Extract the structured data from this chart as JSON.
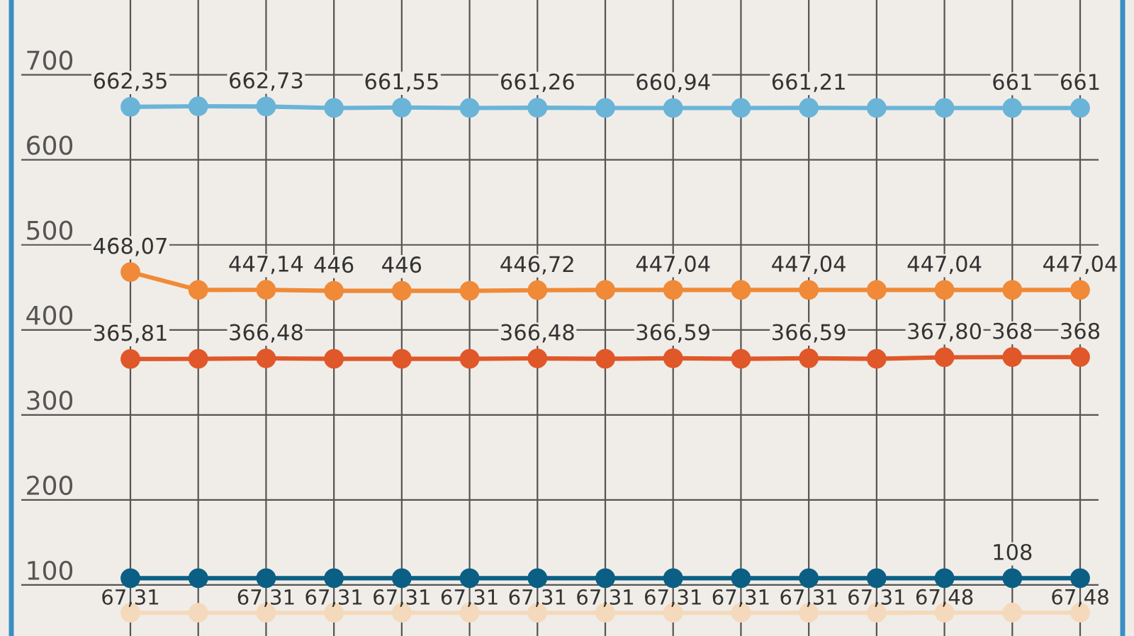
{
  "chart_data": {
    "type": "line",
    "categories": [
      null,
      null,
      null,
      null,
      null,
      null,
      null,
      null,
      null,
      null,
      null,
      null,
      null,
      null,
      null
    ],
    "series": [
      {
        "color": "#6ab4d8",
        "values": [
          662.35,
          663,
          662.73,
          661,
          661.55,
          661,
          661.26,
          661,
          660.94,
          661,
          661.21,
          661,
          661,
          661,
          661
        ],
        "value_labels": [
          "662,35",
          null,
          "662,73",
          null,
          "661,55",
          null,
          "661,26",
          null,
          "660,94",
          null,
          "661,21",
          null,
          null,
          "661",
          "661"
        ]
      },
      {
        "color": "#f08a38",
        "values": [
          468.07,
          447,
          447.14,
          446,
          446,
          446,
          446.72,
          447,
          447.04,
          447,
          447.04,
          447,
          447.04,
          447,
          447.04
        ],
        "value_labels": [
          "468,07",
          null,
          "447,14",
          "446",
          "446",
          null,
          "446,72",
          null,
          "447,04",
          null,
          "447,04",
          null,
          "447,04",
          null,
          "447,04"
        ]
      },
      {
        "color": "#e0572a",
        "values": [
          365.81,
          366,
          366.48,
          366,
          366,
          366,
          366.48,
          366,
          366.59,
          366,
          366.59,
          366,
          367.8,
          368,
          368
        ],
        "value_labels": [
          "365,81",
          null,
          "366,48",
          null,
          null,
          null,
          "366,48",
          null,
          "366,59",
          null,
          "366,59",
          null,
          "367,80",
          "368",
          "368"
        ]
      },
      {
        "color": "#0b5f84",
        "values": [
          108,
          108,
          108,
          108,
          108,
          108,
          108,
          108,
          108,
          108,
          108,
          108,
          108,
          108,
          108
        ],
        "value_labels": [
          null,
          null,
          null,
          null,
          null,
          null,
          null,
          null,
          null,
          null,
          null,
          null,
          null,
          "108",
          null
        ]
      },
      {
        "color": "#f5d9bc",
        "values": [
          67.31,
          67.31,
          67.31,
          67.31,
          67.31,
          67.31,
          67.31,
          67.31,
          67.31,
          67.31,
          67.31,
          67.31,
          67.48,
          67.48,
          67.48
        ],
        "value_labels": [
          "67,31",
          null,
          "67,31",
          "67,31",
          "67,31",
          "67,31",
          "67,31",
          "67,31",
          "67,31",
          "67,31",
          "67,31",
          "67,31",
          "67,48",
          null,
          "67,48"
        ]
      }
    ],
    "ylim": [
      40,
      788
    ],
    "yticks": [
      100,
      200,
      300,
      400,
      500,
      600,
      700
    ],
    "grid": true,
    "tick_labels": "y",
    "marker": "circle",
    "line_style": "solid"
  }
}
